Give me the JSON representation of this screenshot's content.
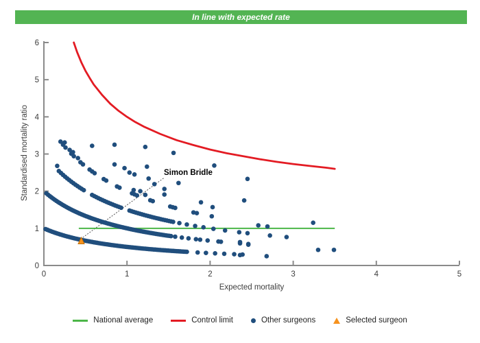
{
  "banner": {
    "label": "In line with expected rate",
    "bg_color": "#53b453",
    "text_color": "#ffffff"
  },
  "chart_data": {
    "type": "scatter",
    "title": "",
    "xlabel": "Expected mortality",
    "ylabel": "Standardised mortality ratio",
    "xlim": [
      0,
      5
    ],
    "ylim": [
      0,
      6
    ],
    "xticks": [
      0,
      1,
      2,
      3,
      4,
      5
    ],
    "yticks": [
      0,
      1,
      2,
      3,
      4,
      5,
      6
    ],
    "grid": false,
    "axis_color": "#8a8a8a",
    "tick_label_color": "#3d3d3d",
    "national_average": {
      "label": "National average",
      "color": "#4cb648",
      "y": 1,
      "x_start": 0.42,
      "x_end": 3.5
    },
    "control_limit": {
      "label": "Control limit",
      "color": "#e31b23",
      "points": [
        [
          0.36,
          6.0
        ],
        [
          0.4,
          5.74
        ],
        [
          0.45,
          5.47
        ],
        [
          0.5,
          5.24
        ],
        [
          0.55,
          5.05
        ],
        [
          0.6,
          4.87
        ],
        [
          0.7,
          4.59
        ],
        [
          0.8,
          4.35
        ],
        [
          0.9,
          4.16
        ],
        [
          1.0,
          4.0
        ],
        [
          1.1,
          3.86
        ],
        [
          1.2,
          3.74
        ],
        [
          1.4,
          3.54
        ],
        [
          1.6,
          3.37
        ],
        [
          1.8,
          3.24
        ],
        [
          2.0,
          3.12
        ],
        [
          2.2,
          3.02
        ],
        [
          2.4,
          2.94
        ],
        [
          2.6,
          2.86
        ],
        [
          2.8,
          2.79
        ],
        [
          3.0,
          2.73
        ],
        [
          3.2,
          2.68
        ],
        [
          3.4,
          2.63
        ],
        [
          3.5,
          2.6
        ]
      ]
    },
    "other_surgeons": {
      "label": "Other surgeons",
      "color": "#204e7d",
      "band_formula": "y = k/(1+x)",
      "bands": [
        {
          "k": 1,
          "dense": [
            0.02,
            1.72,
            0.02
          ],
          "trail": [
            1.85,
            1.95,
            2.06,
            2.17,
            2.29,
            2.39
          ]
        },
        {
          "k": 2,
          "dense": [
            0.03,
            1.52,
            0.02
          ],
          "trail": [
            1.58,
            1.66,
            1.74,
            1.83,
            1.88,
            1.97,
            2.1,
            2.13,
            2.36,
            2.46
          ]
        },
        {
          "k": 3,
          "dense": [
            0.18,
            1.55,
            0.025
          ],
          "gaps": [
            [
              0.5,
              0.56
            ],
            [
              0.95,
              1.01
            ]
          ],
          "trail": [
            1.63,
            1.72,
            1.82,
            1.92,
            2.04,
            2.18,
            2.35,
            2.45,
            2.72,
            2.92
          ]
        },
        {
          "k": 4,
          "dash_x": [
            0.2,
            0.23,
            0.26,
            0.33,
            0.36,
            0.44,
            0.47,
            0.55,
            0.58,
            0.61,
            0.72,
            0.75,
            0.88,
            0.91,
            1.06,
            1.09,
            1.12,
            1.28,
            1.31,
            1.52,
            1.55,
            1.58,
            1.8,
            1.84,
            2.02
          ]
        }
      ],
      "loose_points": [
        [
          0.16,
          2.68
        ],
        [
          0.25,
          3.31
        ],
        [
          0.31,
          3.11
        ],
        [
          0.35,
          3.05
        ],
        [
          0.41,
          2.89
        ],
        [
          0.58,
          3.22
        ],
        [
          0.85,
          3.25
        ],
        [
          1.22,
          3.19
        ],
        [
          1.56,
          3.03
        ],
        [
          0.85,
          2.72
        ],
        [
          0.97,
          2.62
        ],
        [
          1.03,
          2.5
        ],
        [
          1.09,
          2.45
        ],
        [
          1.24,
          2.66
        ],
        [
          1.26,
          2.34
        ],
        [
          1.33,
          2.19
        ],
        [
          1.45,
          2.06
        ],
        [
          1.62,
          2.22
        ],
        [
          1.08,
          2.03
        ],
        [
          1.16,
          2.0
        ],
        [
          1.22,
          1.9
        ],
        [
          1.45,
          1.91
        ],
        [
          1.89,
          1.7
        ],
        [
          2.03,
          1.57
        ],
        [
          2.05,
          2.69
        ],
        [
          2.41,
          1.75
        ],
        [
          2.45,
          2.33
        ],
        [
          2.58,
          1.08
        ],
        [
          2.69,
          1.05
        ],
        [
          3.24,
          1.15
        ],
        [
          2.36,
          0.63
        ],
        [
          2.46,
          0.56
        ],
        [
          3.3,
          0.42
        ],
        [
          3.49,
          0.42
        ],
        [
          2.36,
          0.28
        ],
        [
          2.68,
          0.25
        ]
      ]
    },
    "selected_surgeon": {
      "label": "Simon Bridle",
      "color": "#f6921e",
      "x": 0.45,
      "y": 0.66,
      "callout_from": [
        1.44,
        2.35
      ],
      "callout_to": [
        0.46,
        0.74
      ]
    }
  },
  "legend": {
    "items": [
      {
        "label": "National average",
        "marker": "line",
        "color": "#4cb648"
      },
      {
        "label": "Control limit",
        "marker": "line",
        "color": "#e31b23"
      },
      {
        "label": "Other surgeons",
        "marker": "dot",
        "color": "#204e7d"
      },
      {
        "label": "Selected surgeon",
        "marker": "triangle",
        "color": "#f6921e"
      }
    ]
  }
}
